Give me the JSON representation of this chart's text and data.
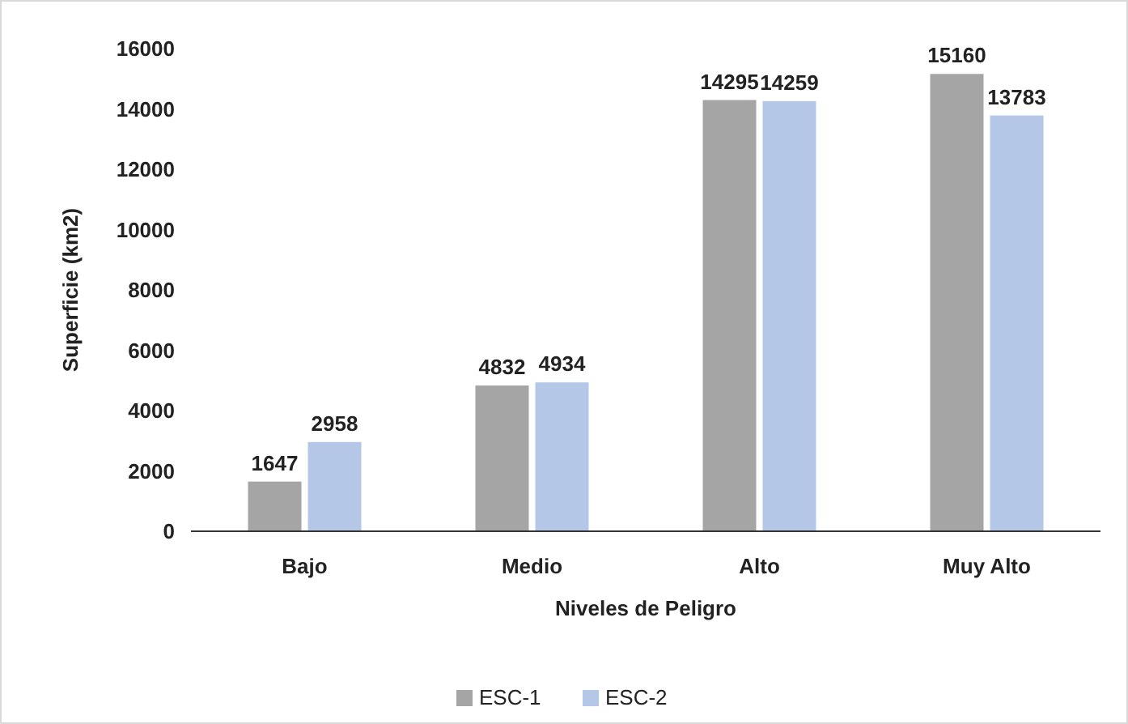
{
  "chart_data": {
    "type": "bar",
    "xlabel": "Niveles de Peligro",
    "ylabel": "Superficie (km2)",
    "categories": [
      "Bajo",
      "Medio",
      "Alto",
      "Muy Alto"
    ],
    "series": [
      {
        "name": "ESC-1",
        "color": "#a5a5a5",
        "values": [
          1647,
          4832,
          14295,
          15160
        ]
      },
      {
        "name": "ESC-2",
        "color": "#b4c7e7",
        "values": [
          2958,
          4934,
          14259,
          13783
        ]
      }
    ],
    "ylim": [
      0,
      16000
    ],
    "yticks": [
      0,
      2000,
      4000,
      6000,
      8000,
      10000,
      12000,
      14000,
      16000
    ],
    "grid": false,
    "legend": "bottom",
    "data_labels": true
  }
}
